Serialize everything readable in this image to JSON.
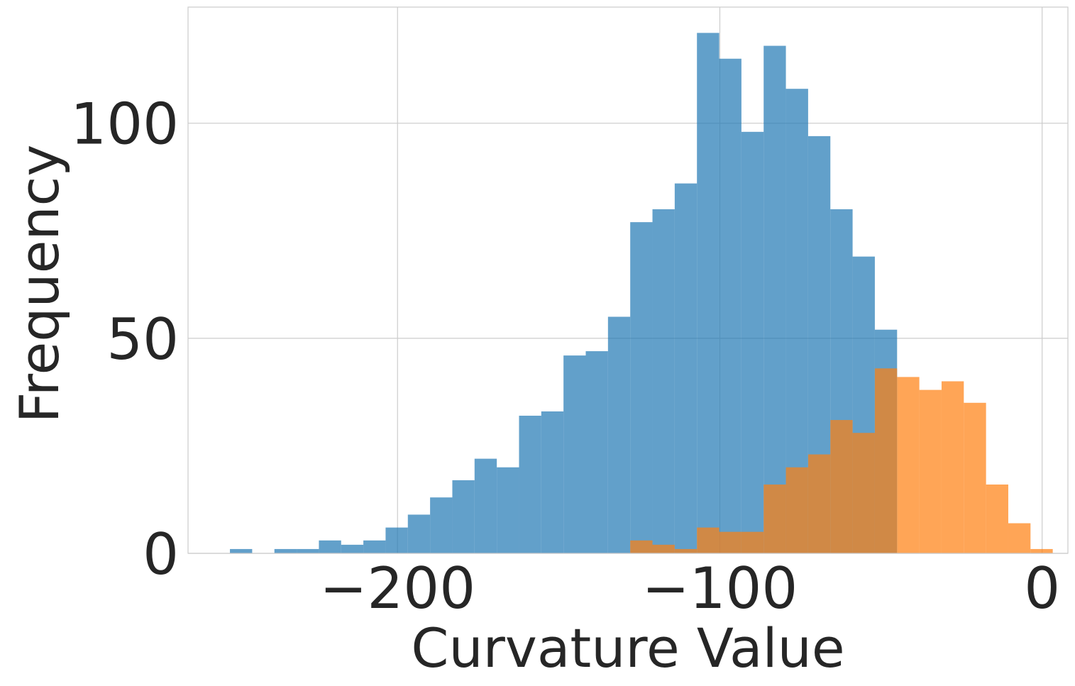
{
  "chart_data": {
    "type": "histogram",
    "xlabel": "Curvature Value",
    "ylabel": "Frequency",
    "xlim": [
      -265,
      8
    ],
    "ylim": [
      0,
      127
    ],
    "xticks": [
      -200,
      -100,
      0
    ],
    "xtick_labels": [
      "−200",
      "−100",
      "0"
    ],
    "yticks": [
      0,
      50,
      100
    ],
    "ytick_labels": [
      "0",
      "50",
      "100"
    ],
    "grid": true,
    "legend": "none",
    "series": [
      {
        "color": "#1f77b4",
        "opacity": 0.7,
        "bins": [
          [
            -252,
            -245.1,
            1
          ],
          [
            -245.1,
            -238.2,
            0
          ],
          [
            -238.2,
            -231.3,
            1
          ],
          [
            -231.3,
            -224.4,
            1
          ],
          [
            -224.4,
            -217.5,
            3
          ],
          [
            -217.5,
            -210.6,
            2
          ],
          [
            -210.6,
            -203.7,
            3
          ],
          [
            -203.7,
            -196.8,
            6
          ],
          [
            -196.8,
            -189.9,
            9
          ],
          [
            -189.9,
            -183.0,
            13
          ],
          [
            -183.0,
            -176.1,
            17
          ],
          [
            -176.1,
            -169.2,
            22
          ],
          [
            -169.2,
            -162.3,
            20
          ],
          [
            -162.3,
            -155.4,
            32
          ],
          [
            -155.4,
            -148.5,
            33
          ],
          [
            -148.5,
            -141.6,
            46
          ],
          [
            -141.6,
            -134.7,
            47
          ],
          [
            -134.7,
            -127.8,
            55
          ],
          [
            -127.8,
            -120.9,
            77
          ],
          [
            -120.9,
            -114.0,
            80
          ],
          [
            -114.0,
            -107.1,
            86
          ],
          [
            -107.1,
            -100.2,
            121
          ],
          [
            -100.2,
            -93.3,
            115
          ],
          [
            -93.3,
            -86.4,
            98
          ],
          [
            -86.4,
            -79.5,
            118
          ],
          [
            -79.5,
            -72.6,
            108
          ],
          [
            -72.6,
            -65.7,
            97
          ],
          [
            -65.7,
            -58.8,
            80
          ],
          [
            -58.8,
            -51.9,
            69
          ],
          [
            -51.9,
            -45.0,
            52
          ]
        ]
      },
      {
        "color": "#ff7f0e",
        "opacity": 0.7,
        "bins": [
          [
            -127.8,
            -120.9,
            3
          ],
          [
            -120.9,
            -114.0,
            2
          ],
          [
            -114.0,
            -107.1,
            1
          ],
          [
            -107.1,
            -100.2,
            6
          ],
          [
            -100.2,
            -93.3,
            5
          ],
          [
            -93.3,
            -86.4,
            5
          ],
          [
            -86.4,
            -79.5,
            16
          ],
          [
            -79.5,
            -72.6,
            20
          ],
          [
            -72.6,
            -65.7,
            23
          ],
          [
            -65.7,
            -58.8,
            31
          ],
          [
            -58.8,
            -51.9,
            28
          ],
          [
            -51.9,
            -45.0,
            43
          ],
          [
            -45.0,
            -38.1,
            41
          ],
          [
            -38.1,
            -31.2,
            38
          ],
          [
            -31.2,
            -24.3,
            40
          ],
          [
            -24.3,
            -17.4,
            35
          ],
          [
            -17.4,
            -10.5,
            16
          ],
          [
            -10.5,
            -3.6,
            7
          ],
          [
            -3.6,
            3.3,
            1
          ]
        ]
      }
    ]
  }
}
